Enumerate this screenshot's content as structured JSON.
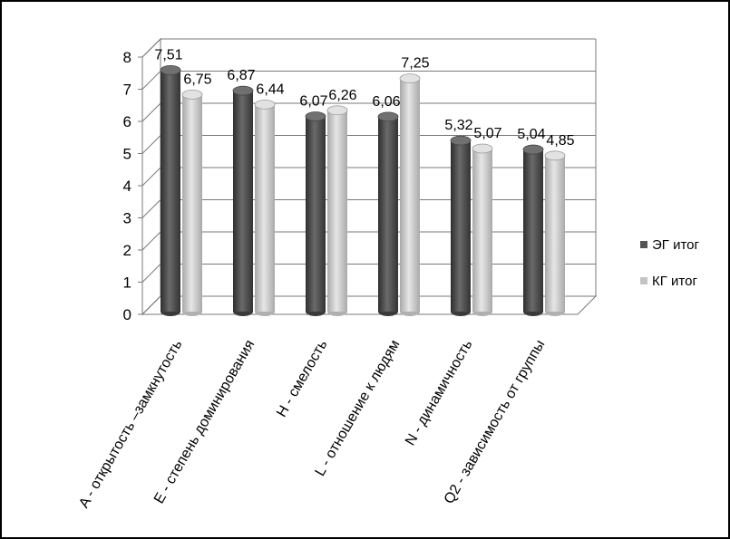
{
  "chart_data": {
    "type": "bar",
    "categories": [
      "A - открытость –замкнутость",
      "E - степень доминирования",
      "H - смелость",
      "L - отношение к людям",
      "N - динамичность",
      "Q2 - зависимость от группы"
    ],
    "series": [
      {
        "name": "ЭГ итог",
        "values": [
          7.51,
          6.87,
          6.07,
          6.06,
          5.32,
          5.04
        ],
        "labels": [
          "7,51",
          "6,87",
          "6,07",
          "6,06",
          "5,32",
          "5,04"
        ],
        "color": "#555555"
      },
      {
        "name": "КГ итог",
        "values": [
          6.75,
          6.44,
          6.26,
          7.25,
          5.07,
          4.85
        ],
        "labels": [
          "6,75",
          "6,44",
          "6,26",
          "7,25",
          "5,07",
          "4,85"
        ],
        "color": "#c4c4c4"
      }
    ],
    "y_ticks": [
      "0",
      "1",
      "2",
      "3",
      "4",
      "5",
      "6",
      "7",
      "8"
    ],
    "ylim": [
      0,
      8
    ],
    "grid": true,
    "legend_position": "right",
    "style": "3d-cylinder"
  }
}
